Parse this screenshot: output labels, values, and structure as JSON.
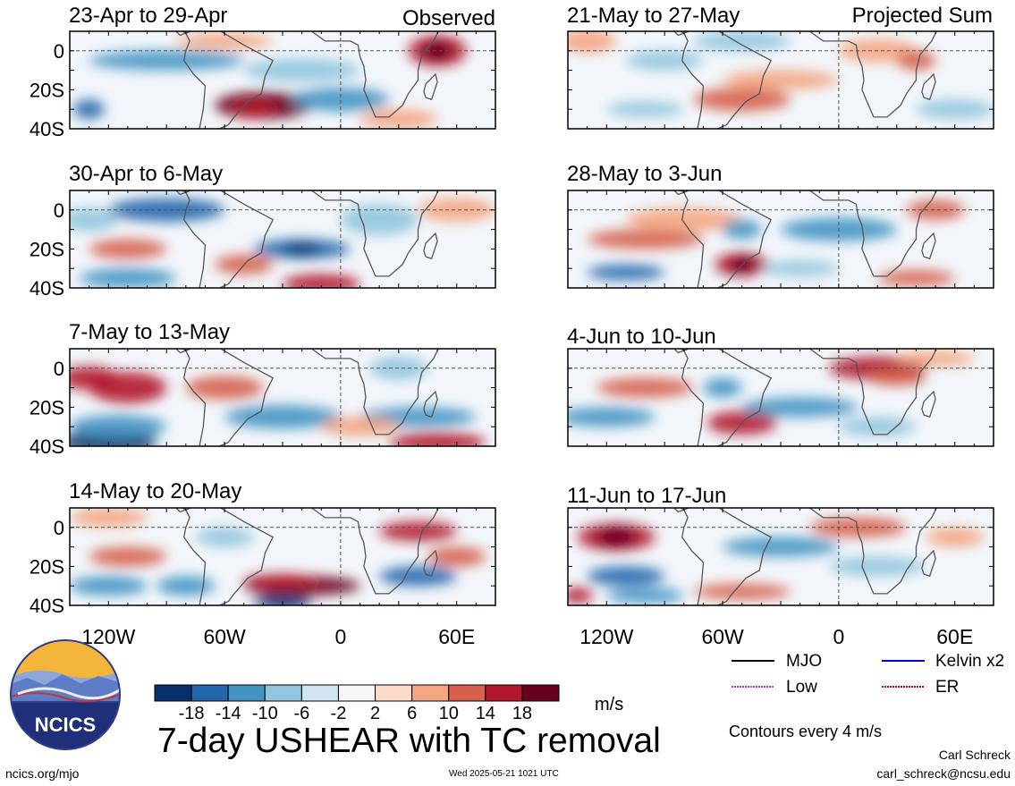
{
  "figure": {
    "title": "7-day USHEAR with TC removal",
    "units": "m/s",
    "contour_note": "Contours every 4 m/s",
    "left_column_tag": "Observed",
    "right_column_tag": "Projected Sum",
    "footer_left": "ncics.org/mjo",
    "footer_center": "Wed 2025-05-21 1021 UTC",
    "author": "Carl Schreck",
    "email": "carl_schreck@ncsu.edu",
    "logo_text": "NCICS"
  },
  "legend": [
    {
      "label": "MJO",
      "color": "#000000"
    },
    {
      "label": "Kelvin x2",
      "color": "#0000cc"
    },
    {
      "label": "Low",
      "color": "#aa33dd"
    },
    {
      "label": "ER",
      "color": "#cc0000"
    }
  ],
  "chart_data": [
    {
      "type": "heatmap",
      "column": "Observed",
      "title": "23-Apr to 29-Apr",
      "yticks": [
        "0",
        "20S",
        "40S"
      ],
      "ylim": [
        "40S",
        "10N"
      ],
      "xlim": [
        "140W",
        "80E"
      ],
      "xticks": [
        "120W",
        "60W",
        "0",
        "60E"
      ]
    },
    {
      "type": "heatmap",
      "column": "Observed",
      "title": "30-Apr to 6-May",
      "yticks": [
        "0",
        "20S",
        "40S"
      ],
      "ylim": [
        "40S",
        "10N"
      ],
      "xlim": [
        "140W",
        "80E"
      ],
      "xticks": [
        "120W",
        "60W",
        "0",
        "60E"
      ]
    },
    {
      "type": "heatmap",
      "column": "Observed",
      "title": "7-May to 13-May",
      "yticks": [
        "0",
        "20S",
        "40S"
      ],
      "ylim": [
        "40S",
        "10N"
      ],
      "xlim": [
        "140W",
        "80E"
      ],
      "xticks": [
        "120W",
        "60W",
        "0",
        "60E"
      ]
    },
    {
      "type": "heatmap",
      "column": "Observed",
      "title": "14-May to 20-May",
      "yticks": [
        "0",
        "20S",
        "40S"
      ],
      "ylim": [
        "40S",
        "10N"
      ],
      "xlim": [
        "140W",
        "80E"
      ],
      "xticks": [
        "120W",
        "60W",
        "0",
        "60E"
      ]
    },
    {
      "type": "heatmap",
      "column": "Projected Sum",
      "title": "21-May to 27-May",
      "yticks": [
        "0",
        "20S",
        "40S"
      ],
      "ylim": [
        "40S",
        "10N"
      ],
      "xlim": [
        "140W",
        "80E"
      ],
      "xticks": [
        "120W",
        "60W",
        "0",
        "60E"
      ]
    },
    {
      "type": "heatmap",
      "column": "Projected Sum",
      "title": "28-May to 3-Jun",
      "yticks": [
        "0",
        "20S",
        "40S"
      ],
      "ylim": [
        "40S",
        "10N"
      ],
      "xlim": [
        "140W",
        "80E"
      ],
      "xticks": [
        "120W",
        "60W",
        "0",
        "60E"
      ]
    },
    {
      "type": "heatmap",
      "column": "Projected Sum",
      "title": "4-Jun to 10-Jun",
      "yticks": [
        "0",
        "20S",
        "40S"
      ],
      "ylim": [
        "40S",
        "10N"
      ],
      "xlim": [
        "140W",
        "80E"
      ],
      "xticks": [
        "120W",
        "60W",
        "0",
        "60E"
      ]
    },
    {
      "type": "heatmap",
      "column": "Projected Sum",
      "title": "11-Jun to 17-Jun",
      "yticks": [
        "0",
        "20S",
        "40S"
      ],
      "ylim": [
        "40S",
        "10N"
      ],
      "xlim": [
        "140W",
        "80E"
      ],
      "xticks": [
        "120W",
        "60W",
        "0",
        "60E"
      ]
    }
  ],
  "colorbar": {
    "labels": [
      "-18",
      "-14",
      "-10",
      "-6",
      "-2",
      "2",
      "6",
      "10",
      "14",
      "18"
    ],
    "colors": [
      "#08306b",
      "#2166ac",
      "#4393c3",
      "#92c5de",
      "#d1e5f0",
      "#f7f7f7",
      "#fddbc7",
      "#f4a582",
      "#d6604d",
      "#b2182b",
      "#67001f"
    ]
  }
}
